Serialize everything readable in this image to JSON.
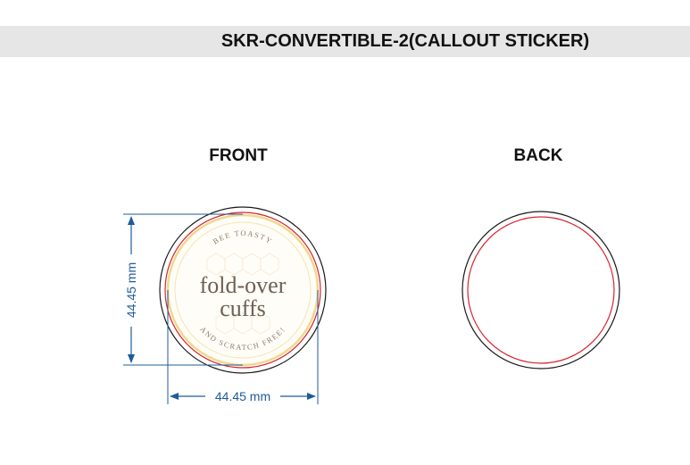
{
  "header": {
    "title": "SKR-CONVERTIBLE-2(CALLOUT STICKER)"
  },
  "views": {
    "front_label": "FRONT",
    "back_label": "BACK"
  },
  "dimensions": {
    "height_label": "44.45 mm",
    "width_label": "44.45 mm"
  },
  "sticker": {
    "line1": "fold-over",
    "line2": "cuffs",
    "arc_top": "BEE TOASTY",
    "arc_bottom": "AND SCRATCH FREE!"
  },
  "colors": {
    "dimension": "#1f5b99",
    "bleed_line": "#d9232e",
    "cut_line": "#1a1a1a",
    "sticker_border": "#f2d88e"
  }
}
